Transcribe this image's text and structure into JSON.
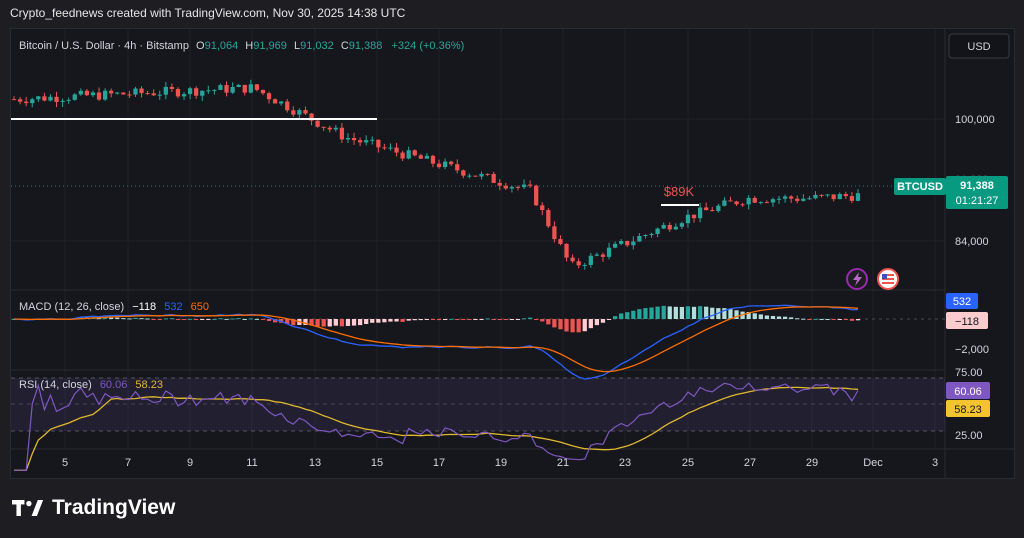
{
  "caption": "Crypto_feednews created with TradingView.com, Nov 30, 2025 14:38 UTC",
  "header": {
    "symbol": "Bitcoin / U.S. Dollar · 4h · Bitstamp",
    "o_label": "O",
    "o_value": "91,064",
    "h_label": "H",
    "h_value": "91,969",
    "l_label": "L",
    "l_value": "91,032",
    "c_label": "C",
    "c_value": "91,388",
    "change": "+324 (+0.36%)"
  },
  "currency_button": "USD",
  "price_axis": {
    "labels": [
      "100,000",
      "84,000"
    ],
    "hidden_label": "91,388",
    "ticker_badge": "BTCUSD",
    "last_price": "91,388",
    "countdown": "01:21:27"
  },
  "annotation": "$89K",
  "icons": [
    "lightning-icon",
    "us-flag-icon"
  ],
  "macd": {
    "label": "MACD (12, 26, close)",
    "hist_value": "−118",
    "macd_value": "532",
    "signal_value": "650",
    "axis_label": "−2,000",
    "badge_macd": "532",
    "badge_hist": "−118",
    "colors": {
      "macd": "#2962ff",
      "signal": "#ff6d00",
      "hist_up": "#26a69a",
      "hist_down": "#ef5350"
    }
  },
  "rsi": {
    "label": "RSI (14, close)",
    "rsi_value": "60.06",
    "ma_value": "58.23",
    "axis_labels": [
      "75.00",
      "25.00"
    ],
    "badge_rsi": "60.06",
    "badge_ma": "58.23",
    "colors": {
      "rsi": "#7e57c2",
      "ma": "#e1b82c",
      "band": "#7e57c2"
    }
  },
  "x_axis": {
    "labels": [
      "5",
      "7",
      "9",
      "11",
      "13",
      "15",
      "17",
      "19",
      "21",
      "23",
      "25",
      "27",
      "29",
      "Dec",
      "3"
    ]
  },
  "footer": {
    "brand": "TradingView"
  },
  "colors": {
    "up": "#26a69a",
    "down": "#ef5350",
    "bg": "#16171d",
    "badge": "#089981"
  },
  "chart_data": {
    "type": "candlestick",
    "timeframe": "4h",
    "price_anchors": [
      {
        "label": "Nov 4",
        "price": 104000
      },
      {
        "label": "Nov 11",
        "price": 105500
      },
      {
        "label": "Nov 14",
        "price": 99000
      },
      {
        "label": "Nov 17",
        "price": 95500
      },
      {
        "label": "Nov 20",
        "price": 92000
      },
      {
        "label": "Nov 21",
        "price": 82000
      },
      {
        "label": "Nov 25",
        "price": 88500
      },
      {
        "label": "Nov 27",
        "price": 91000
      },
      {
        "label": "Nov 29",
        "price": 91000
      },
      {
        "label": "Nov 30",
        "price": 91388
      }
    ],
    "support_line": 101400,
    "annotation_level": 89000,
    "last_price": 91388,
    "macd": {
      "macd": 532,
      "signal": 650,
      "histogram": -118
    },
    "rsi": {
      "rsi": 60.06,
      "ma": 58.23,
      "upper_band": 70,
      "lower_band": 30
    }
  }
}
